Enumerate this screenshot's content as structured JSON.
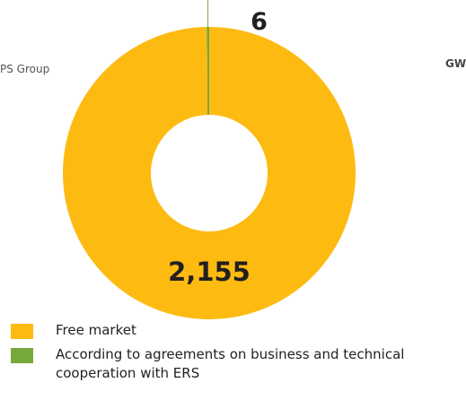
{
  "chart_data": {
    "type": "pie",
    "categories": [
      "Free market",
      "According to agreements on business and technical cooperation with ERS"
    ],
    "values": [
      2155,
      6
    ],
    "value_labels": [
      "2,155",
      "6"
    ],
    "colors": [
      "#fdbb12",
      "#77a83b"
    ],
    "annotations": [
      "PS Group",
      "GW"
    ]
  }
}
